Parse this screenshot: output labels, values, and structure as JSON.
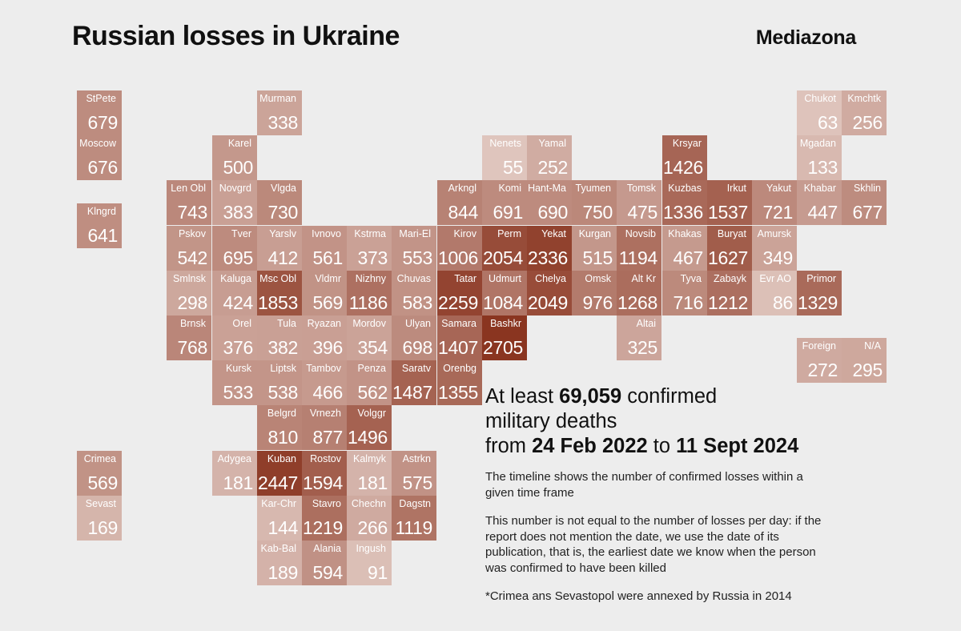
{
  "header": {
    "title": "Russian losses in Ukraine",
    "brand": "Mediazona"
  },
  "summary": {
    "line1_pre": "At least ",
    "total": "69,059",
    "line1_post": " confirmed",
    "line2": "military deaths",
    "line3_pre": "from ",
    "date_from": "24 Feb 2022",
    "line3_mid": " to ",
    "date_to": "11 Sept 2024",
    "note1": "The timeline shows the number of confirmed losses within a given time frame",
    "note2": "This number is not equal to the number of losses per day: if the report does not mention the date, we use the date of its publication, that is, the earliest date we know when the person was confirmed to have been killed",
    "footnote": "*Crimea ans Sevastopol were annexed by Russia in 2014"
  },
  "colors": {
    "max": "#8a3520",
    "min": "#ead8d2"
  },
  "regions": [
    {
      "label": "StPete",
      "value": 679,
      "col": 0,
      "row": 0
    },
    {
      "label": "Murman",
      "value": 338,
      "col": 4,
      "row": 0
    },
    {
      "label": "Chukot",
      "value": 63,
      "col": 16,
      "row": 0
    },
    {
      "label": "Kmchtk",
      "value": 256,
      "col": 17,
      "row": 0
    },
    {
      "label": "Moscow",
      "value": 676,
      "col": 0,
      "row": 1
    },
    {
      "label": "Karel",
      "value": 500,
      "col": 3,
      "row": 1
    },
    {
      "label": "Nenets",
      "value": 55,
      "col": 9,
      "row": 1
    },
    {
      "label": "Yamal",
      "value": 252,
      "col": 10,
      "row": 1
    },
    {
      "label": "Krsyar",
      "value": 1426,
      "col": 13,
      "row": 1
    },
    {
      "label": "Mgadan",
      "value": 133,
      "col": 16,
      "row": 1
    },
    {
      "label": "Len Obl",
      "value": 743,
      "col": 2,
      "row": 2
    },
    {
      "label": "Novgrd",
      "value": 383,
      "col": 3,
      "row": 2
    },
    {
      "label": "Vlgda",
      "value": 730,
      "col": 4,
      "row": 2
    },
    {
      "label": "Arkngl",
      "value": 844,
      "col": 8,
      "row": 2
    },
    {
      "label": "Komi",
      "value": 691,
      "col": 9,
      "row": 2
    },
    {
      "label": "Hant-Ma",
      "value": 690,
      "col": 10,
      "row": 2
    },
    {
      "label": "Tyumen",
      "value": 750,
      "col": 11,
      "row": 2
    },
    {
      "label": "Tomsk",
      "value": 475,
      "col": 12,
      "row": 2
    },
    {
      "label": "Kuzbas",
      "value": 1336,
      "col": 13,
      "row": 2
    },
    {
      "label": "Irkut",
      "value": 1537,
      "col": 14,
      "row": 2
    },
    {
      "label": "Yakut",
      "value": 721,
      "col": 15,
      "row": 2
    },
    {
      "label": "Khabar",
      "value": 447,
      "col": 16,
      "row": 2
    },
    {
      "label": "Skhlin",
      "value": 677,
      "col": 17,
      "row": 2
    },
    {
      "label": "Klngrd",
      "value": 641,
      "col": 0,
      "row": 2.5
    },
    {
      "label": "Pskov",
      "value": 542,
      "col": 2,
      "row": 3
    },
    {
      "label": "Tver",
      "value": 695,
      "col": 3,
      "row": 3
    },
    {
      "label": "Yarslv",
      "value": 412,
      "col": 4,
      "row": 3
    },
    {
      "label": "Ivnovo",
      "value": 561,
      "col": 5,
      "row": 3
    },
    {
      "label": "Kstrma",
      "value": 373,
      "col": 6,
      "row": 3
    },
    {
      "label": "Mari-El",
      "value": 553,
      "col": 7,
      "row": 3
    },
    {
      "label": "Kirov",
      "value": 1006,
      "col": 8,
      "row": 3
    },
    {
      "label": "Perm",
      "value": 2054,
      "col": 9,
      "row": 3
    },
    {
      "label": "Yekat",
      "value": 2336,
      "col": 10,
      "row": 3
    },
    {
      "label": "Kurgan",
      "value": 515,
      "col": 11,
      "row": 3
    },
    {
      "label": "Novsib",
      "value": 1194,
      "col": 12,
      "row": 3
    },
    {
      "label": "Khakas",
      "value": 467,
      "col": 13,
      "row": 3
    },
    {
      "label": "Buryat",
      "value": 1627,
      "col": 14,
      "row": 3
    },
    {
      "label": "Amursk",
      "value": 349,
      "col": 15,
      "row": 3
    },
    {
      "label": "Smlnsk",
      "value": 298,
      "col": 2,
      "row": 4
    },
    {
      "label": "Kaluga",
      "value": 424,
      "col": 3,
      "row": 4
    },
    {
      "label": "Msc Obl",
      "value": 1853,
      "col": 4,
      "row": 4
    },
    {
      "label": "Vldmr",
      "value": 569,
      "col": 5,
      "row": 4
    },
    {
      "label": "Nizhny",
      "value": 1186,
      "col": 6,
      "row": 4
    },
    {
      "label": "Chuvas",
      "value": 583,
      "col": 7,
      "row": 4
    },
    {
      "label": "Tatar",
      "value": 2259,
      "col": 8,
      "row": 4
    },
    {
      "label": "Udmurt",
      "value": 1084,
      "col": 9,
      "row": 4
    },
    {
      "label": "Chelya",
      "value": 2049,
      "col": 10,
      "row": 4
    },
    {
      "label": "Omsk",
      "value": 976,
      "col": 11,
      "row": 4
    },
    {
      "label": "Alt Kr",
      "value": 1268,
      "col": 12,
      "row": 4
    },
    {
      "label": "Tyva",
      "value": 716,
      "col": 13,
      "row": 4
    },
    {
      "label": "Zabayk",
      "value": 1212,
      "col": 14,
      "row": 4
    },
    {
      "label": "Evr AO",
      "value": 86,
      "col": 15,
      "row": 4
    },
    {
      "label": "Primor",
      "value": 1329,
      "col": 16,
      "row": 4
    },
    {
      "label": "Brnsk",
      "value": 768,
      "col": 2,
      "row": 5
    },
    {
      "label": "Orel",
      "value": 376,
      "col": 3,
      "row": 5
    },
    {
      "label": "Tula",
      "value": 382,
      "col": 4,
      "row": 5
    },
    {
      "label": "Ryazan",
      "value": 396,
      "col": 5,
      "row": 5
    },
    {
      "label": "Mordov",
      "value": 354,
      "col": 6,
      "row": 5
    },
    {
      "label": "Ulyan",
      "value": 698,
      "col": 7,
      "row": 5
    },
    {
      "label": "Samara",
      "value": 1407,
      "col": 8,
      "row": 5
    },
    {
      "label": "Bashkr",
      "value": 2705,
      "col": 9,
      "row": 5
    },
    {
      "label": "Altai",
      "value": 325,
      "col": 12,
      "row": 5
    },
    {
      "label": "Foreign",
      "value": 272,
      "col": 16,
      "row": 5.5
    },
    {
      "label": "N/A",
      "value": 295,
      "col": 17,
      "row": 5.5
    },
    {
      "label": "Kursk",
      "value": 533,
      "col": 3,
      "row": 6
    },
    {
      "label": "Liptsk",
      "value": 538,
      "col": 4,
      "row": 6
    },
    {
      "label": "Tambov",
      "value": 466,
      "col": 5,
      "row": 6
    },
    {
      "label": "Penza",
      "value": 562,
      "col": 6,
      "row": 6
    },
    {
      "label": "Saratv",
      "value": 1487,
      "col": 7,
      "row": 6
    },
    {
      "label": "Orenbg",
      "value": 1355,
      "col": 8,
      "row": 6
    },
    {
      "label": "Belgrd",
      "value": 810,
      "col": 4,
      "row": 7
    },
    {
      "label": "Vrnezh",
      "value": 877,
      "col": 5,
      "row": 7
    },
    {
      "label": "Volggr",
      "value": 1496,
      "col": 6,
      "row": 7
    },
    {
      "label": "Crimea",
      "value": 569,
      "col": 0,
      "row": 8
    },
    {
      "label": "Adygea",
      "value": 181,
      "col": 3,
      "row": 8
    },
    {
      "label": "Kuban",
      "value": 2447,
      "col": 4,
      "row": 8
    },
    {
      "label": "Rostov",
      "value": 1594,
      "col": 5,
      "row": 8
    },
    {
      "label": "Kalmyk",
      "value": 181,
      "col": 6,
      "row": 8
    },
    {
      "label": "Astrkn",
      "value": 575,
      "col": 7,
      "row": 8
    },
    {
      "label": "Sevast",
      "value": 169,
      "col": 0,
      "row": 9
    },
    {
      "label": "Kar-Chr",
      "value": 144,
      "col": 4,
      "row": 9
    },
    {
      "label": "Stavro",
      "value": 1219,
      "col": 5,
      "row": 9
    },
    {
      "label": "Chechn",
      "value": 266,
      "col": 6,
      "row": 9
    },
    {
      "label": "Dagstn",
      "value": 1119,
      "col": 7,
      "row": 9
    },
    {
      "label": "Kab-Bal",
      "value": 189,
      "col": 4,
      "row": 10
    },
    {
      "label": "Alania",
      "value": 594,
      "col": 5,
      "row": 10
    },
    {
      "label": "Ingush",
      "value": 91,
      "col": 6,
      "row": 10
    }
  ]
}
